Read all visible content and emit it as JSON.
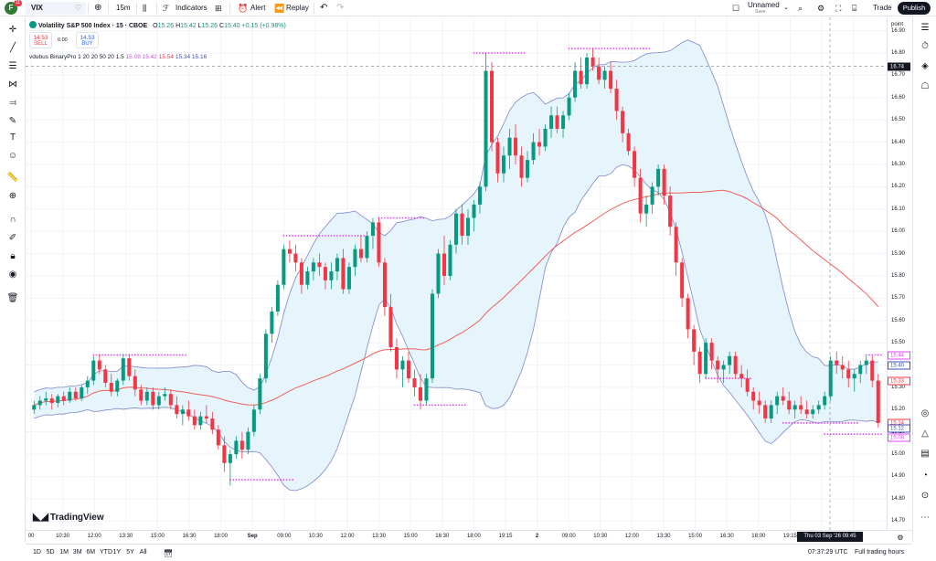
{
  "topbar": {
    "avatar_letter": "F",
    "avatar_badge": "11",
    "symbol": "VIX",
    "interval": "15m",
    "indicators": "Indicators",
    "alert": "Alert",
    "replay": "Replay",
    "layout_name": "Unnamed",
    "layout_sub": "Save",
    "trade": "Trade",
    "publish": "Publish"
  },
  "legend": {
    "title": "Volatility S&P 500 Index · 15 · CBOE",
    "o_label": "O",
    "o": "15.26",
    "h_label": "H",
    "h": "15.42",
    "l_label": "L",
    "l": "15.26",
    "c_label": "C",
    "c": "15.40",
    "change": "+0.15 (+0.98%)",
    "sell_price": "14.53",
    "sell_label": "SELL",
    "spread": "0.00",
    "buy_price": "14.53",
    "buy_label": "BUY"
  },
  "indicator_legend": {
    "name": "vdubus BinaryPro",
    "params": "1 20 20 50 20 1.5",
    "v1": "15.08",
    "v2": "15.42",
    "v3": "15.54",
    "v4": "15.34",
    "v5": "15.16"
  },
  "price_axis": {
    "unit": "point",
    "ticks": [
      "16.90",
      "16.80",
      "16.70",
      "16.60",
      "16.50",
      "16.40",
      "16.30",
      "16.20",
      "16.10",
      "16.00",
      "15.90",
      "15.80",
      "15.70",
      "15.60",
      "15.50",
      "15.40",
      "15.30",
      "15.20",
      "15.10",
      "15.00",
      "14.90",
      "14.80",
      "14.70"
    ],
    "labels": [
      {
        "value": "16.74",
        "bg": "#131722",
        "fg": "#ffffff",
        "price": 16.74
      },
      {
        "value": "15.44",
        "bg": "#ffffff",
        "fg": "#e040fb",
        "price": 15.445
      },
      {
        "value": "15.40",
        "bg": "#ffffff",
        "fg": "#3f51b5",
        "price": 15.4
      },
      {
        "value": "15.33",
        "bg": "#ffffff",
        "fg": "#f23645",
        "price": 15.33
      },
      {
        "value": "15.14",
        "bg": "#ffffff",
        "fg": "#f23645",
        "price": 15.14
      },
      {
        "value": "15.12",
        "bg": "#ffffff",
        "fg": "#3f51b5",
        "price": 15.115
      },
      {
        "value": "15.08",
        "bg": "#ffffff",
        "fg": "#e040fb",
        "price": 15.075
      }
    ]
  },
  "time_axis": {
    "ticks": [
      {
        "label": "00",
        "bold": false
      },
      {
        "label": "10:30",
        "bold": false
      },
      {
        "label": "12:00",
        "bold": false
      },
      {
        "label": "13:30",
        "bold": false
      },
      {
        "label": "15:00",
        "bold": false
      },
      {
        "label": "16:30",
        "bold": false
      },
      {
        "label": "18:00",
        "bold": false
      },
      {
        "label": "Sep",
        "bold": true
      },
      {
        "label": "09:00",
        "bold": false
      },
      {
        "label": "10:30",
        "bold": false
      },
      {
        "label": "12:00",
        "bold": false
      },
      {
        "label": "13:30",
        "bold": false
      },
      {
        "label": "15:00",
        "bold": false
      },
      {
        "label": "16:30",
        "bold": false
      },
      {
        "label": "18:00",
        "bold": false
      },
      {
        "label": "19:15",
        "bold": false
      },
      {
        "label": "2",
        "bold": true
      },
      {
        "label": "09:00",
        "bold": false
      },
      {
        "label": "10:30",
        "bold": false
      },
      {
        "label": "12:00",
        "bold": false
      },
      {
        "label": "13:30",
        "bold": false
      },
      {
        "label": "15:00",
        "bold": false
      },
      {
        "label": "16:30",
        "bold": false
      },
      {
        "label": "18:00",
        "bold": false
      },
      {
        "label": "19:15",
        "bold": false
      },
      {
        "label": "3",
        "bold": true
      },
      {
        "label": "12:00",
        "bold": false
      }
    ],
    "current": "Thu 03 Sep '26  09:45"
  },
  "bottombar": {
    "ranges": [
      "1D",
      "5D",
      "1M",
      "3M",
      "6M",
      "YTD",
      "1Y",
      "5Y",
      "All"
    ],
    "clock": "07:37:29 UTC",
    "session": "Full trading hours"
  },
  "logo_text": "TradingView",
  "colors": {
    "up": "#089981",
    "down": "#f23645",
    "band_fill": "#e3f4fb",
    "band_line": "#7e86c9",
    "ma": "#f0605a",
    "dots": "#e040fb"
  },
  "chart_data": {
    "type": "candlestick",
    "title": "Volatility S&P 500 Index · 15 · CBOE",
    "ylabel": "point",
    "ylim": [
      14.66,
      16.96
    ],
    "candles": [
      [
        15.2,
        15.24,
        15.18,
        15.22
      ],
      [
        15.22,
        15.26,
        15.2,
        15.24
      ],
      [
        15.24,
        15.28,
        15.22,
        15.25
      ],
      [
        15.25,
        15.27,
        15.2,
        15.23
      ],
      [
        15.23,
        15.27,
        15.21,
        15.26
      ],
      [
        15.26,
        15.28,
        15.22,
        15.24
      ],
      [
        15.24,
        15.3,
        15.23,
        15.28
      ],
      [
        15.28,
        15.3,
        15.24,
        15.25
      ],
      [
        15.25,
        15.31,
        15.24,
        15.3
      ],
      [
        15.3,
        15.35,
        15.27,
        15.33
      ],
      [
        15.33,
        15.44,
        15.31,
        15.42
      ],
      [
        15.42,
        15.45,
        15.36,
        15.38
      ],
      [
        15.38,
        15.4,
        15.3,
        15.32
      ],
      [
        15.32,
        15.36,
        15.26,
        15.28
      ],
      [
        15.28,
        15.34,
        15.26,
        15.33
      ],
      [
        15.33,
        15.45,
        15.31,
        15.43
      ],
      [
        15.43,
        15.45,
        15.33,
        15.35
      ],
      [
        15.35,
        15.38,
        15.26,
        15.29
      ],
      [
        15.29,
        15.31,
        15.22,
        15.24
      ],
      [
        15.24,
        15.3,
        15.22,
        15.28
      ],
      [
        15.28,
        15.3,
        15.2,
        15.22
      ],
      [
        15.22,
        15.28,
        15.2,
        15.26
      ],
      [
        15.26,
        15.3,
        15.24,
        15.27
      ],
      [
        15.27,
        15.29,
        15.2,
        15.22
      ],
      [
        15.22,
        15.26,
        15.16,
        15.18
      ],
      [
        15.18,
        15.22,
        15.13,
        15.2
      ],
      [
        15.2,
        15.24,
        15.15,
        15.17
      ],
      [
        15.17,
        15.2,
        15.11,
        15.13
      ],
      [
        15.13,
        15.19,
        15.11,
        15.17
      ],
      [
        15.17,
        15.22,
        15.14,
        15.16
      ],
      [
        15.16,
        15.19,
        15.09,
        15.11
      ],
      [
        15.11,
        15.13,
        15.02,
        15.04
      ],
      [
        15.04,
        15.08,
        14.92,
        14.96
      ],
      [
        14.96,
        15.02,
        14.86,
        15.0
      ],
      [
        15.0,
        15.08,
        14.98,
        15.06
      ],
      [
        15.06,
        15.1,
        14.98,
        15.02
      ],
      [
        15.02,
        15.12,
        15.0,
        15.1
      ],
      [
        15.1,
        15.22,
        15.08,
        15.2
      ],
      [
        15.2,
        15.36,
        15.18,
        15.34
      ],
      [
        15.34,
        15.56,
        15.32,
        15.54
      ],
      [
        15.54,
        15.66,
        15.5,
        15.64
      ],
      [
        15.64,
        15.78,
        15.62,
        15.76
      ],
      [
        15.76,
        15.94,
        15.74,
        15.92
      ],
      [
        15.92,
        15.96,
        15.86,
        15.9
      ],
      [
        15.9,
        15.94,
        15.82,
        15.86
      ],
      [
        15.86,
        15.88,
        15.72,
        15.76
      ],
      [
        15.76,
        15.84,
        15.74,
        15.82
      ],
      [
        15.82,
        15.88,
        15.78,
        15.86
      ],
      [
        15.86,
        15.9,
        15.8,
        15.84
      ],
      [
        15.84,
        15.86,
        15.74,
        15.78
      ],
      [
        15.78,
        15.86,
        15.74,
        15.82
      ],
      [
        15.82,
        15.9,
        15.78,
        15.88
      ],
      [
        15.88,
        15.92,
        15.72,
        15.74
      ],
      [
        15.74,
        15.86,
        15.72,
        15.84
      ],
      [
        15.84,
        15.94,
        15.8,
        15.92
      ],
      [
        15.92,
        15.98,
        15.86,
        15.88
      ],
      [
        15.88,
        16.0,
        15.86,
        15.98
      ],
      [
        15.98,
        16.06,
        15.92,
        16.04
      ],
      [
        16.04,
        16.06,
        15.84,
        15.86
      ],
      [
        15.86,
        15.88,
        15.62,
        15.66
      ],
      [
        15.66,
        15.72,
        15.46,
        15.48
      ],
      [
        15.48,
        15.52,
        15.34,
        15.38
      ],
      [
        15.38,
        15.44,
        15.3,
        15.42
      ],
      [
        15.42,
        15.46,
        15.32,
        15.34
      ],
      [
        15.34,
        15.38,
        15.26,
        15.3
      ],
      [
        15.3,
        15.36,
        15.2,
        15.24
      ],
      [
        15.24,
        15.36,
        15.22,
        15.34
      ],
      [
        15.34,
        15.74,
        15.32,
        15.72
      ],
      [
        15.72,
        15.92,
        15.7,
        15.9
      ],
      [
        15.9,
        15.98,
        15.76,
        15.8
      ],
      [
        15.8,
        15.96,
        15.78,
        15.94
      ],
      [
        15.94,
        16.1,
        15.9,
        16.08
      ],
      [
        16.08,
        16.12,
        15.94,
        15.98
      ],
      [
        15.98,
        16.1,
        15.94,
        16.06
      ],
      [
        16.06,
        16.14,
        16.0,
        16.12
      ],
      [
        16.12,
        16.22,
        16.08,
        16.2
      ],
      [
        16.2,
        16.8,
        16.18,
        16.72
      ],
      [
        16.72,
        16.76,
        16.36,
        16.4
      ],
      [
        16.4,
        16.42,
        16.22,
        16.26
      ],
      [
        16.26,
        16.38,
        16.22,
        16.34
      ],
      [
        16.34,
        16.46,
        16.28,
        16.42
      ],
      [
        16.42,
        16.48,
        16.3,
        16.34
      ],
      [
        16.34,
        16.38,
        16.2,
        16.24
      ],
      [
        16.24,
        16.36,
        16.22,
        16.32
      ],
      [
        16.32,
        16.44,
        16.3,
        16.4
      ],
      [
        16.4,
        16.46,
        16.34,
        16.38
      ],
      [
        16.38,
        16.48,
        16.36,
        16.46
      ],
      [
        16.46,
        16.56,
        16.42,
        16.52
      ],
      [
        16.52,
        16.56,
        16.44,
        16.46
      ],
      [
        16.46,
        16.54,
        16.42,
        16.52
      ],
      [
        16.52,
        16.62,
        16.5,
        16.6
      ],
      [
        16.6,
        16.76,
        16.58,
        16.72
      ],
      [
        16.72,
        16.78,
        16.64,
        16.66
      ],
      [
        16.66,
        16.8,
        16.64,
        16.78
      ],
      [
        16.78,
        16.82,
        16.72,
        16.74
      ],
      [
        16.74,
        16.78,
        16.66,
        16.68
      ],
      [
        16.68,
        16.74,
        16.64,
        16.72
      ],
      [
        16.72,
        16.76,
        16.62,
        16.64
      ],
      [
        16.64,
        16.68,
        16.5,
        16.54
      ],
      [
        16.54,
        16.56,
        16.4,
        16.44
      ],
      [
        16.44,
        16.46,
        16.34,
        16.36
      ],
      [
        16.36,
        16.38,
        16.2,
        16.24
      ],
      [
        16.24,
        16.28,
        16.04,
        16.08
      ],
      [
        16.08,
        16.16,
        16.02,
        16.12
      ],
      [
        16.12,
        16.22,
        16.08,
        16.2
      ],
      [
        16.2,
        16.3,
        16.16,
        16.28
      ],
      [
        16.28,
        16.3,
        16.12,
        16.16
      ],
      [
        16.16,
        16.2,
        15.98,
        16.02
      ],
      [
        16.02,
        16.04,
        15.8,
        15.86
      ],
      [
        15.86,
        15.88,
        15.66,
        15.7
      ],
      [
        15.7,
        15.72,
        15.52,
        15.56
      ],
      [
        15.56,
        15.58,
        15.4,
        15.46
      ],
      [
        15.46,
        15.48,
        15.32,
        15.36
      ],
      [
        15.36,
        15.52,
        15.34,
        15.5
      ],
      [
        15.5,
        15.52,
        15.38,
        15.42
      ],
      [
        15.42,
        15.44,
        15.32,
        15.38
      ],
      [
        15.38,
        15.42,
        15.32,
        15.4
      ],
      [
        15.4,
        15.46,
        15.36,
        15.44
      ],
      [
        15.44,
        15.46,
        15.34,
        15.36
      ],
      [
        15.36,
        15.4,
        15.3,
        15.34
      ],
      [
        15.34,
        15.38,
        15.26,
        15.28
      ],
      [
        15.28,
        15.3,
        15.2,
        15.24
      ],
      [
        15.24,
        15.28,
        15.18,
        15.22
      ],
      [
        15.22,
        15.24,
        15.14,
        15.16
      ],
      [
        15.16,
        15.24,
        15.14,
        15.22
      ],
      [
        15.22,
        15.28,
        15.18,
        15.26
      ],
      [
        15.26,
        15.3,
        15.22,
        15.24
      ],
      [
        15.24,
        15.28,
        15.18,
        15.2
      ],
      [
        15.2,
        15.24,
        15.16,
        15.22
      ],
      [
        15.22,
        15.26,
        15.18,
        15.2
      ],
      [
        15.2,
        15.24,
        15.16,
        15.18
      ],
      [
        15.18,
        15.22,
        15.16,
        15.2
      ],
      [
        15.2,
        15.24,
        15.18,
        15.22
      ],
      [
        15.22,
        15.28,
        15.2,
        15.26
      ],
      [
        15.26,
        15.44,
        15.24,
        15.42
      ],
      [
        15.42,
        15.46,
        15.36,
        15.4
      ],
      [
        15.4,
        15.44,
        15.34,
        15.38
      ],
      [
        15.38,
        15.42,
        15.3,
        15.34
      ],
      [
        15.34,
        15.38,
        15.28,
        15.36
      ],
      [
        15.36,
        15.42,
        15.32,
        15.4
      ],
      [
        15.4,
        15.44,
        15.36,
        15.42
      ],
      [
        15.42,
        15.44,
        15.3,
        15.33
      ],
      [
        15.33,
        15.36,
        15.12,
        15.14
      ]
    ]
  }
}
